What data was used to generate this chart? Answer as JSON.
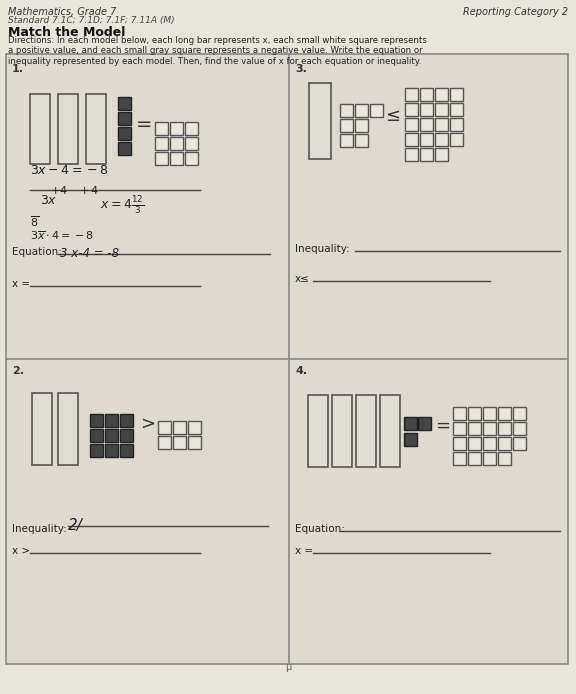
{
  "bg_color": "#d8d5cc",
  "page_bg": "#e8e5db",
  "cell_bg": "#dedad0",
  "title_left": "Mathematics, Grade 7",
  "title_right": "Reporting Category 2",
  "standard": "Standard 7.1C; 7.1D; 7.1F; 7.11A (M)",
  "heading": "Match the Model",
  "directions": "Directions: In each model below, each long bar represents x, each small white square represents\na positive value, and each small gray square represents a negative value. Write the equation or\ninequality represented by each model. Then, find the value of x for each equation or inequality.",
  "bar_color_outline": "#888888",
  "bar_fill": "#e0ddd5",
  "white_sq_fill": "#e8e5db",
  "dark_sq_fill": "#444444",
  "label1": "1.",
  "label2": "2.",
  "label3": "3.",
  "label4": "4.",
  "eq1_label": "Equation:",
  "eq1_written": "3 x-4 = -8",
  "x1_label": "x = ",
  "ineq2_label": "Inequality:",
  "ineq2_written": "2/",
  "x2_label": "x >",
  "ineq3_label": "Inequality:",
  "xs3_label": "x≤",
  "eq4_label": "Equation:",
  "x4_label": "x ="
}
